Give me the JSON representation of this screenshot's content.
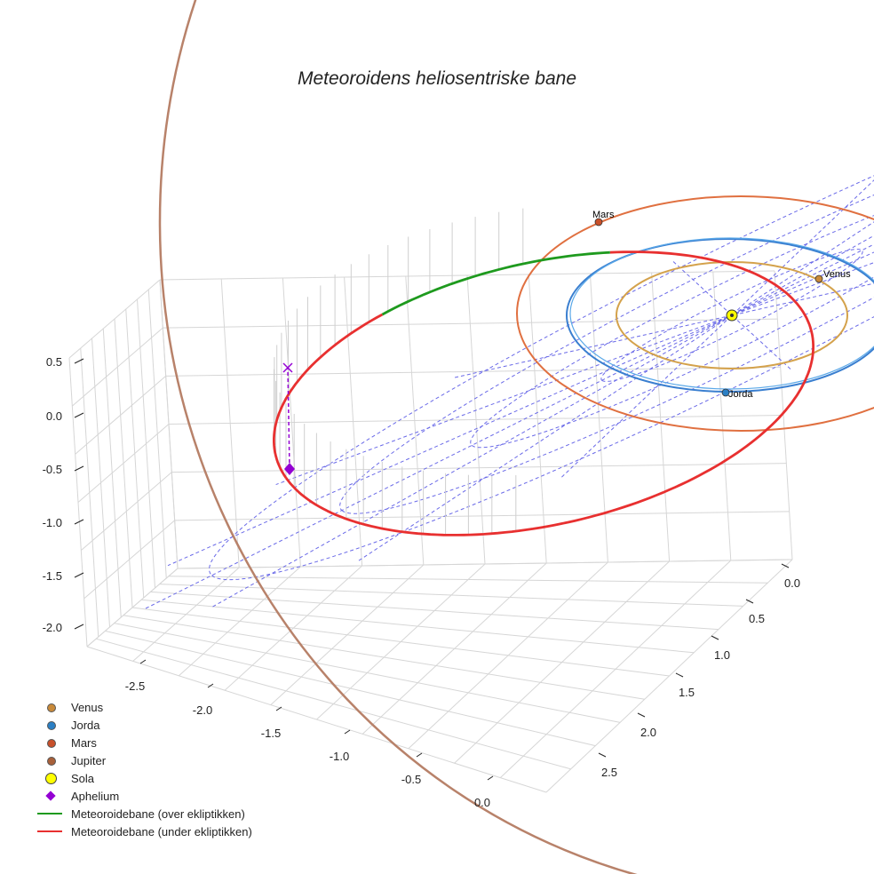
{
  "chart_data": {
    "type": "line3d",
    "title": "Meteoroidens heliosentriske bane",
    "axes": {
      "x": {
        "ticks": [
          "-2.5",
          "-2.0",
          "-1.5",
          "-1.0",
          "-0.5",
          "0.0"
        ],
        "range": [
          -2.8,
          0.3
        ]
      },
      "y": {
        "ticks": [
          "0.0",
          "0.5",
          "1.0",
          "1.5",
          "2.0",
          "2.5"
        ],
        "range": [
          -0.3,
          2.8
        ]
      },
      "z": {
        "ticks": [
          "0.5",
          "0.0",
          "-0.5",
          "-1.0",
          "-1.5",
          "-2.0"
        ],
        "range": [
          -2.2,
          0.7
        ]
      }
    },
    "orbits": [
      {
        "name": "Venus",
        "radius_au": 0.72,
        "color": "#d4a24c"
      },
      {
        "name": "Jorda",
        "radius_au": 1.0,
        "color": "#3a7fd0"
      },
      {
        "name": "Mars",
        "radius_au": 1.52,
        "color": "#e07040"
      },
      {
        "name": "Jupiter",
        "radius_au": 5.2,
        "color": "#b8826a"
      }
    ],
    "ecliptic_grid_radii_au": [
      1,
      2,
      3,
      4
    ],
    "meteoroid_orbit": {
      "aphelion_au": 3.3,
      "perihelion_au": 0.55,
      "inclination_deg": 8
    },
    "point_labels": [
      "Mars",
      "Venus",
      "Jorda"
    ],
    "legend": [
      {
        "label": "Venus",
        "kind": "dot",
        "color": "#c98a3a"
      },
      {
        "label": "Jorda",
        "kind": "dot",
        "color": "#2b7fc4"
      },
      {
        "label": "Mars",
        "kind": "dot",
        "color": "#c8502a"
      },
      {
        "label": "Jupiter",
        "kind": "dot",
        "color": "#a8603a"
      },
      {
        "label": "Sola",
        "kind": "sun",
        "color": "#ffff00"
      },
      {
        "label": "Aphelium",
        "kind": "diamond",
        "color": "#9400d3"
      },
      {
        "label": "Meteoroidebane (over ekliptikken)",
        "kind": "line",
        "color": "#1e9a1e"
      },
      {
        "label": "Meteoroidebane (under ekliptikken)",
        "kind": "line",
        "color": "#e83030"
      }
    ]
  }
}
